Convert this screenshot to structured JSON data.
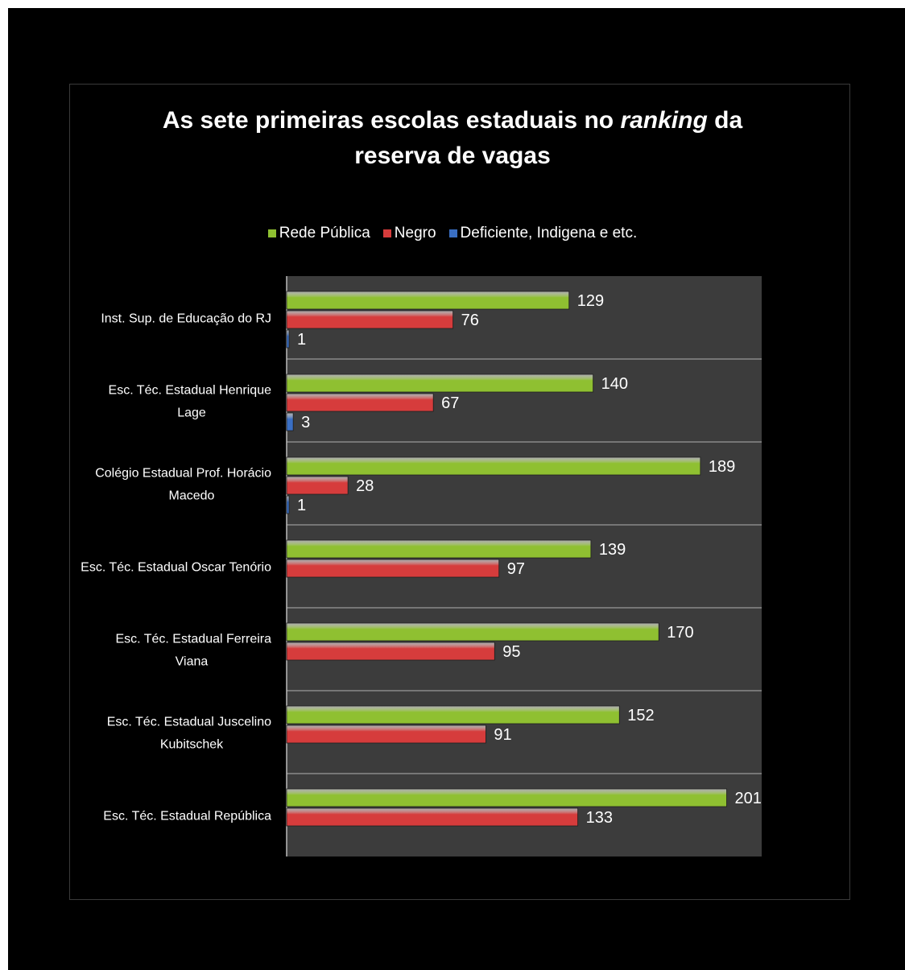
{
  "chart_data": {
    "type": "bar",
    "orientation": "horizontal",
    "title_line1_pre": "As sete primeiras escolas estaduais no ",
    "title_line1_em": "ranking",
    "title_line1_post": " da",
    "title_line2": "reserva de vagas",
    "legend_position": "top",
    "categories": [
      "Inst. Sup. de Educação do RJ",
      "Esc. Téc.  Estadual Henrique Lage",
      "Colégio Estadual  Prof. Horácio Macedo",
      "Esc. Téc.  Estadual Oscar Tenório",
      "Esc. Téc.  Estadual Ferreira Viana",
      "Esc. Téc.  Estadual Juscelino Kubitschek",
      "Esc. Téc.  Estadual República"
    ],
    "category_lines": [
      [
        "Inst. Sup. de Educação do RJ"
      ],
      [
        "Esc. Téc.  Estadual Henrique",
        "Lage"
      ],
      [
        "Colégio Estadual  Prof. Horácio",
        "Macedo"
      ],
      [
        "Esc. Téc.  Estadual Oscar Tenório"
      ],
      [
        "Esc. Téc.  Estadual Ferreira",
        "Viana"
      ],
      [
        "Esc. Téc.  Estadual Juscelino",
        "Kubitschek"
      ],
      [
        "Esc. Téc.  Estadual República"
      ]
    ],
    "series": [
      {
        "name": "Rede Pública",
        "color": "#8fc031",
        "values": [
          129,
          140,
          189,
          139,
          170,
          152,
          201
        ]
      },
      {
        "name": "Negro",
        "color": "#d63c3c",
        "values": [
          76,
          67,
          28,
          97,
          95,
          91,
          133
        ]
      },
      {
        "name": "Deficiente, Indigena e etc.",
        "color": "#3a6fc4",
        "values": [
          1,
          3,
          1,
          null,
          null,
          null,
          null
        ]
      }
    ],
    "xlim": [
      0,
      217
    ],
    "grid": true
  }
}
